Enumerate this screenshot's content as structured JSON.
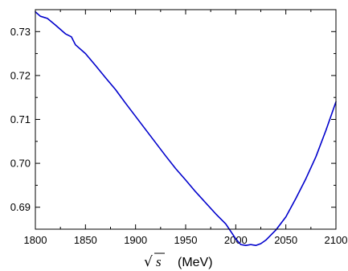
{
  "chart_data": {
    "type": "line",
    "title": "",
    "xlabel": {
      "sqrt_symbol": "√",
      "variable": "s",
      "unit": "(MeV)"
    },
    "ylabel": "",
    "xlim": [
      1800,
      2100
    ],
    "ylim": [
      0.685,
      0.735
    ],
    "x_ticks": [
      1800,
      1850,
      1900,
      1950,
      2000,
      2050,
      2100
    ],
    "y_ticks": [
      0.69,
      0.7,
      0.71,
      0.72,
      0.73
    ],
    "y_tick_labels": [
      "0.69",
      "0.70",
      "0.71",
      "0.72",
      "0.73"
    ],
    "x_minor_step": 25,
    "y_minor_step": 0.005,
    "grid": false,
    "series": [
      {
        "color": "#0000cc",
        "x": [
          1800,
          1805,
          1812,
          1820,
          1830,
          1836,
          1840,
          1850,
          1860,
          1870,
          1880,
          1890,
          1900,
          1910,
          1920,
          1930,
          1940,
          1950,
          1960,
          1970,
          1980,
          1990,
          1995,
          2000,
          2005,
          2010,
          2015,
          2020,
          2025,
          2030,
          2040,
          2050,
          2060,
          2070,
          2080,
          2090,
          2100
        ],
        "y": [
          0.7345,
          0.7335,
          0.733,
          0.7315,
          0.7295,
          0.7288,
          0.727,
          0.725,
          0.7223,
          0.7195,
          0.7168,
          0.7137,
          0.7107,
          0.7077,
          0.7047,
          0.7017,
          0.6988,
          0.6962,
          0.6935,
          0.691,
          0.6885,
          0.6862,
          0.6845,
          0.6828,
          0.6815,
          0.6813,
          0.6815,
          0.6813,
          0.6817,
          0.6825,
          0.6848,
          0.6878,
          0.692,
          0.6965,
          0.7015,
          0.7075,
          0.714
        ]
      }
    ]
  }
}
